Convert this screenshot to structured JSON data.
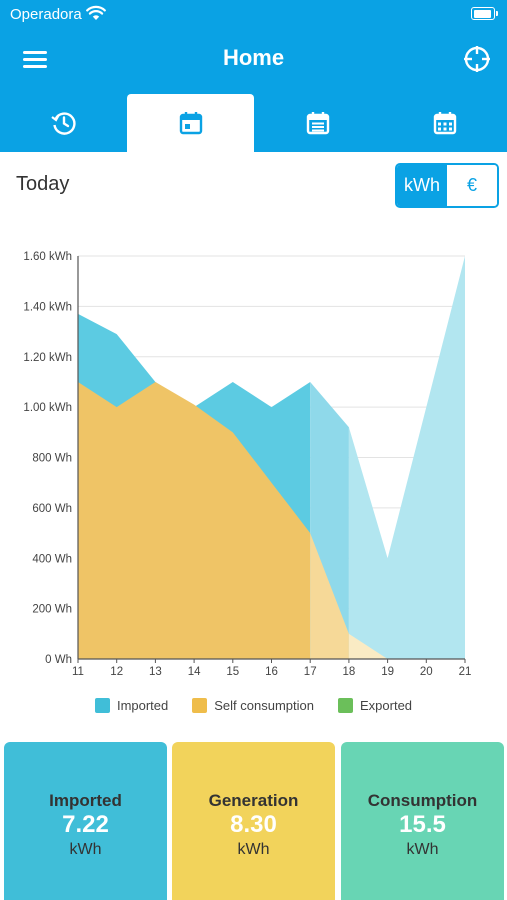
{
  "status": {
    "carrier": "Operadora"
  },
  "header": {
    "title": "Home"
  },
  "tabs": [
    {
      "icon": "history-icon",
      "active": false
    },
    {
      "icon": "calendar-day-icon",
      "active": true
    },
    {
      "icon": "calendar-list-icon",
      "active": false
    },
    {
      "icon": "calendar-grid-icon",
      "active": false
    }
  ],
  "period": {
    "label": "Today"
  },
  "unit_toggle": {
    "kwh": "kWh",
    "eur": "€",
    "selected": "kWh"
  },
  "colors": {
    "primary": "#0aa2e4",
    "imported": "#5ccbe2",
    "self_consumption": "#efc466",
    "exported": "#6bbf5a"
  },
  "chart_data": {
    "type": "area",
    "x": [
      11,
      12,
      13,
      14,
      15,
      16,
      17,
      18,
      19,
      20,
      21
    ],
    "xlim": [
      11,
      21
    ],
    "ylim": [
      0,
      1.6
    ],
    "y_ticks": [
      "0 Wh",
      "200 Wh",
      "400 Wh",
      "600 Wh",
      "800 Wh",
      "1.00 kWh",
      "1.20 kWh",
      "1.40 kWh",
      "1.60 kWh"
    ],
    "y_tick_values": [
      0,
      0.2,
      0.4,
      0.6,
      0.8,
      1.0,
      1.2,
      1.4,
      1.6
    ],
    "forecast_from": 17,
    "series": [
      {
        "name": "Imported",
        "values": [
          1.37,
          1.29,
          1.1,
          1.0,
          1.1,
          1.0,
          1.1,
          0.92,
          0.4,
          1.0,
          1.6
        ]
      },
      {
        "name": "Self consumption",
        "values": [
          1.1,
          1.0,
          1.1,
          1.01,
          0.9,
          0.7,
          0.5,
          0.1,
          0.0,
          0.0,
          0.0
        ]
      },
      {
        "name": "Exported",
        "values": [
          0,
          0,
          0,
          0,
          0,
          0,
          0,
          0,
          0,
          0,
          0
        ]
      }
    ]
  },
  "summary": [
    {
      "label": "Imported",
      "value": "7.22",
      "unit": "kWh",
      "color": "#40bed8"
    },
    {
      "label": "Generation",
      "value": "8.30",
      "unit": "kWh",
      "color": "#f2d35b"
    },
    {
      "label": "Consumption",
      "value": "15.5",
      "unit": "kWh",
      "color": "#68d5b4"
    }
  ]
}
